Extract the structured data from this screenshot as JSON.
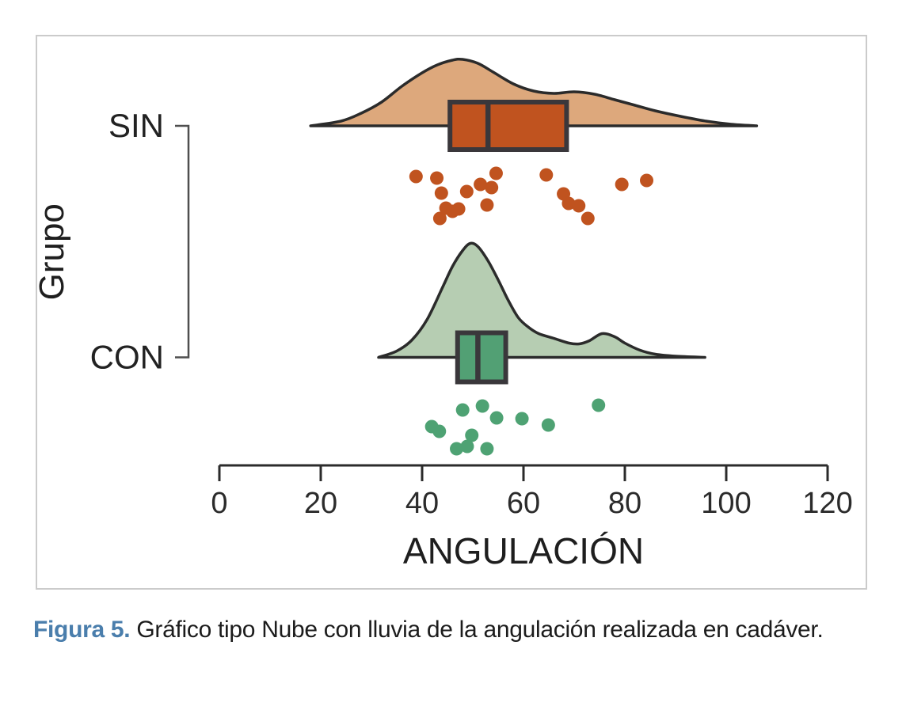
{
  "figure": {
    "caption_label": "Figura 5.",
    "caption_text": "Gráfico tipo Nube con lluvia de la angulación realizada en cadáver.",
    "caption_label_color": "#4a7eac",
    "panel_border_color": "#cbcbcb"
  },
  "chart_data": {
    "type": "raincloud",
    "title": "",
    "xlabel": "ANGULACIÓN",
    "ylabel": "Grupo",
    "xlim": [
      0,
      120
    ],
    "xticks": [
      0,
      20,
      40,
      60,
      80,
      100,
      120
    ],
    "categories": [
      "SIN",
      "CON"
    ],
    "legend": "none",
    "grid": false,
    "ink_color": "#2b2b2b",
    "box_border_color": "#3a373b",
    "bracket_color": "#4f4f4f",
    "groups": [
      {
        "label": "SIN",
        "colors": {
          "density": "#dda87c",
          "box": "#c0531f",
          "points": "#c0531f"
        },
        "box": {
          "whisker_min": 39,
          "q1": 45.5,
          "median": 53,
          "q3": 68.5,
          "whisker_max": 85
        },
        "density_range": [
          18,
          106
        ],
        "density_profile": [
          [
            18,
            0
          ],
          [
            24,
            6
          ],
          [
            28,
            16
          ],
          [
            32,
            30
          ],
          [
            36,
            50
          ],
          [
            40,
            67
          ],
          [
            43,
            77
          ],
          [
            46,
            83
          ],
          [
            48,
            84
          ],
          [
            51,
            79
          ],
          [
            54,
            68
          ],
          [
            58,
            53
          ],
          [
            62,
            44
          ],
          [
            66,
            41
          ],
          [
            70,
            43
          ],
          [
            74,
            40
          ],
          [
            78,
            33
          ],
          [
            82,
            26
          ],
          [
            86,
            19
          ],
          [
            91,
            12
          ],
          [
            96,
            6
          ],
          [
            101,
            2
          ],
          [
            106,
            0
          ]
        ],
        "points": [
          [
            38.8,
            223
          ],
          [
            42.9,
            225
          ],
          [
            43.5,
            276
          ],
          [
            43.8,
            244
          ],
          [
            44.7,
            263
          ],
          [
            46.0,
            267
          ],
          [
            47.2,
            264
          ],
          [
            48.8,
            242
          ],
          [
            51.5,
            233
          ],
          [
            52.8,
            259
          ],
          [
            53.7,
            237
          ],
          [
            54.6,
            219
          ],
          [
            64.5,
            221
          ],
          [
            67.9,
            245
          ],
          [
            68.9,
            257
          ],
          [
            70.9,
            260
          ],
          [
            72.7,
            276
          ],
          [
            79.4,
            233
          ],
          [
            84.3,
            228
          ]
        ]
      },
      {
        "label": "CON",
        "colors": {
          "density": "#b6cdb2",
          "box": "#52a074",
          "points": "#4ea273"
        },
        "box": {
          "whisker_min": 42,
          "q1": 47,
          "median": 51,
          "q3": 56.5,
          "whisker_max": 65
        },
        "density_range": [
          31.4,
          95.8
        ],
        "density_profile": [
          [
            31.4,
            0
          ],
          [
            35,
            8
          ],
          [
            38,
            22
          ],
          [
            41,
            48
          ],
          [
            44,
            88
          ],
          [
            46,
            115
          ],
          [
            48,
            135
          ],
          [
            49.5,
            144
          ],
          [
            51,
            140
          ],
          [
            53,
            122
          ],
          [
            55,
            98
          ],
          [
            57,
            72
          ],
          [
            59,
            50
          ],
          [
            61,
            38
          ],
          [
            63,
            30
          ],
          [
            66,
            24
          ],
          [
            69,
            18
          ],
          [
            71,
            17
          ],
          [
            73,
            21
          ],
          [
            75.5,
            30
          ],
          [
            78,
            26
          ],
          [
            80,
            18
          ],
          [
            83,
            9
          ],
          [
            86,
            4
          ],
          [
            90,
            1.5
          ],
          [
            95.8,
            0
          ]
        ],
        "points": [
          [
            41.9,
            539
          ],
          [
            43.4,
            545
          ],
          [
            46.8,
            567
          ],
          [
            48.0,
            518
          ],
          [
            48.9,
            564
          ],
          [
            49.8,
            550
          ],
          [
            51.9,
            513
          ],
          [
            52.8,
            567
          ],
          [
            54.7,
            528
          ],
          [
            59.7,
            529
          ],
          [
            64.9,
            537
          ],
          [
            74.8,
            512
          ]
        ]
      }
    ]
  }
}
